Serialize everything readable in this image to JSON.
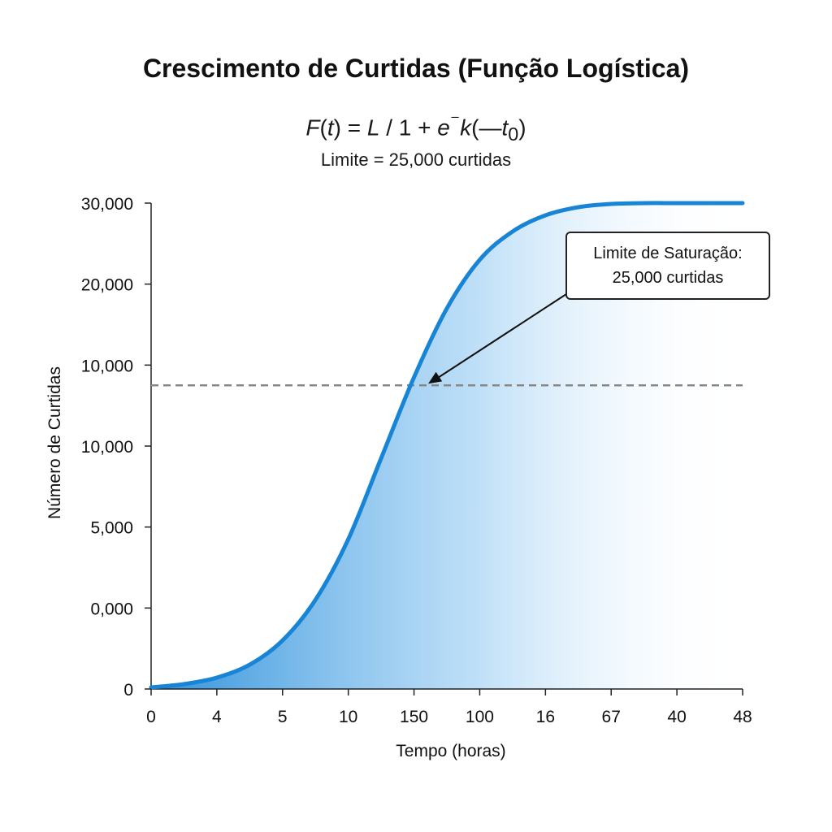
{
  "title": "Crescimento de Curtidas (Função Logística)",
  "formula": {
    "f": "F",
    "open": "(",
    "t": "t",
    "middle": ") = ",
    "l": "L",
    "divide": " / 1 + ",
    "e": "e",
    "exp": "⁻",
    "k": "k",
    "tail": "(—",
    "t0": "t",
    "sub": "0",
    "close": ")"
  },
  "subtitle": "Limite = 25,000 curtidas",
  "annotation": {
    "line1": "Limite de Saturação:",
    "line2": "25,000 curtidas"
  },
  "colors": {
    "curve": "#1784d6",
    "fill": "#3a9ae6",
    "dashed_line": "#888888",
    "axis": "#222222"
  },
  "chart_data": {
    "type": "line",
    "title": "Crescimento de Curtidas (Função Logística)",
    "xlabel": "Tempo (horas)",
    "ylabel": "Número de Curtidas",
    "x_tick_labels": [
      "0",
      "4",
      "5",
      "10",
      "150",
      "100",
      "16",
      "67",
      "40",
      "48"
    ],
    "y_tick_labels": [
      "0",
      "0,000",
      "5,000",
      "10,000",
      "10,000",
      "20,000",
      "30,000"
    ],
    "xlim": [
      0,
      9
    ],
    "ylim": [
      0,
      6
    ],
    "grid": false,
    "reference_line": {
      "y": 3.75,
      "style": "dashed"
    },
    "series": [
      {
        "x": [
          0,
          0.5,
          1,
          1.5,
          2,
          2.5,
          3,
          3.5,
          4,
          4.5,
          5,
          5.5,
          6,
          6.5,
          7,
          7.5,
          8,
          8.5,
          9
        ],
        "y": [
          0.02,
          0.06,
          0.14,
          0.3,
          0.6,
          1.1,
          1.85,
          2.85,
          3.85,
          4.7,
          5.3,
          5.65,
          5.85,
          5.95,
          5.99,
          6.0,
          6.0,
          6.0,
          6.0
        ]
      }
    ]
  }
}
